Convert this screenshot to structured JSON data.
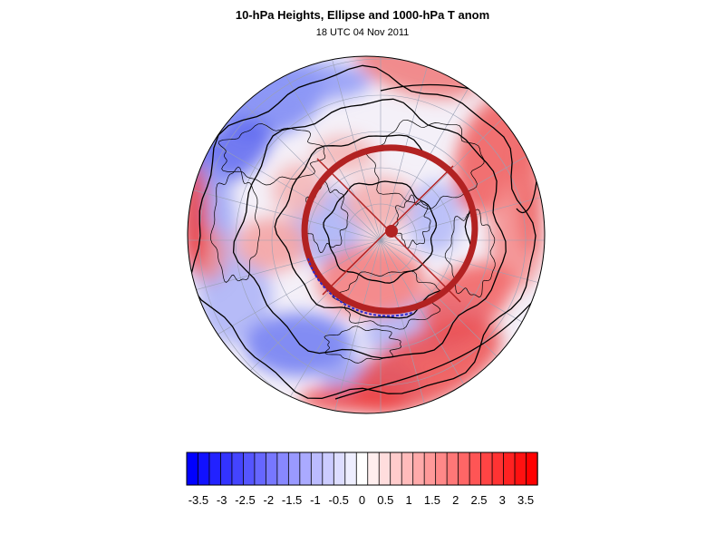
{
  "header": {
    "title": "10-hPa Heights, Ellipse and 1000-hPa T anom",
    "subtitle": "18 UTC 04 Nov 2011"
  },
  "colors": {
    "negative_max": "#0000ff",
    "neutral": "#ffffff",
    "positive_max": "#ff0000",
    "ellipse": "#b22222",
    "contour": "#000000",
    "coastline": "#000000",
    "graticule": "#9aa0b4"
  },
  "projection": "north-polar-orthographic",
  "colorbar": {
    "tick_labels": [
      "-3.5",
      "-3",
      "-2.5",
      "-2",
      "-1.5",
      "-1",
      "-0.5",
      "0",
      "0.5",
      "1",
      "1.5",
      "2",
      "2.5",
      "3",
      "3.5"
    ],
    "range": [
      -3.75,
      3.75
    ],
    "step": 0.25,
    "fill_colors": [
      "#0000ff",
      "#1111ff",
      "#2222ff",
      "#3333ff",
      "#4444ff",
      "#5555ff",
      "#6666ff",
      "#7777ff",
      "#8888ff",
      "#9999ff",
      "#aaaaff",
      "#bbbbff",
      "#ccccff",
      "#ddddff",
      "#eeeeff",
      "#ffffff",
      "#ffeeee",
      "#ffdddd",
      "#ffcccc",
      "#ffbbbb",
      "#ffaaaa",
      "#ff9999",
      "#ff8888",
      "#ff7777",
      "#ff6666",
      "#ff5555",
      "#ff4444",
      "#ff3333",
      "#ff2222",
      "#ff1111",
      "#ff0000"
    ]
  },
  "vortex_ellipse": {
    "center_marker": "filled-circle",
    "axes": "major-and-minor"
  }
}
